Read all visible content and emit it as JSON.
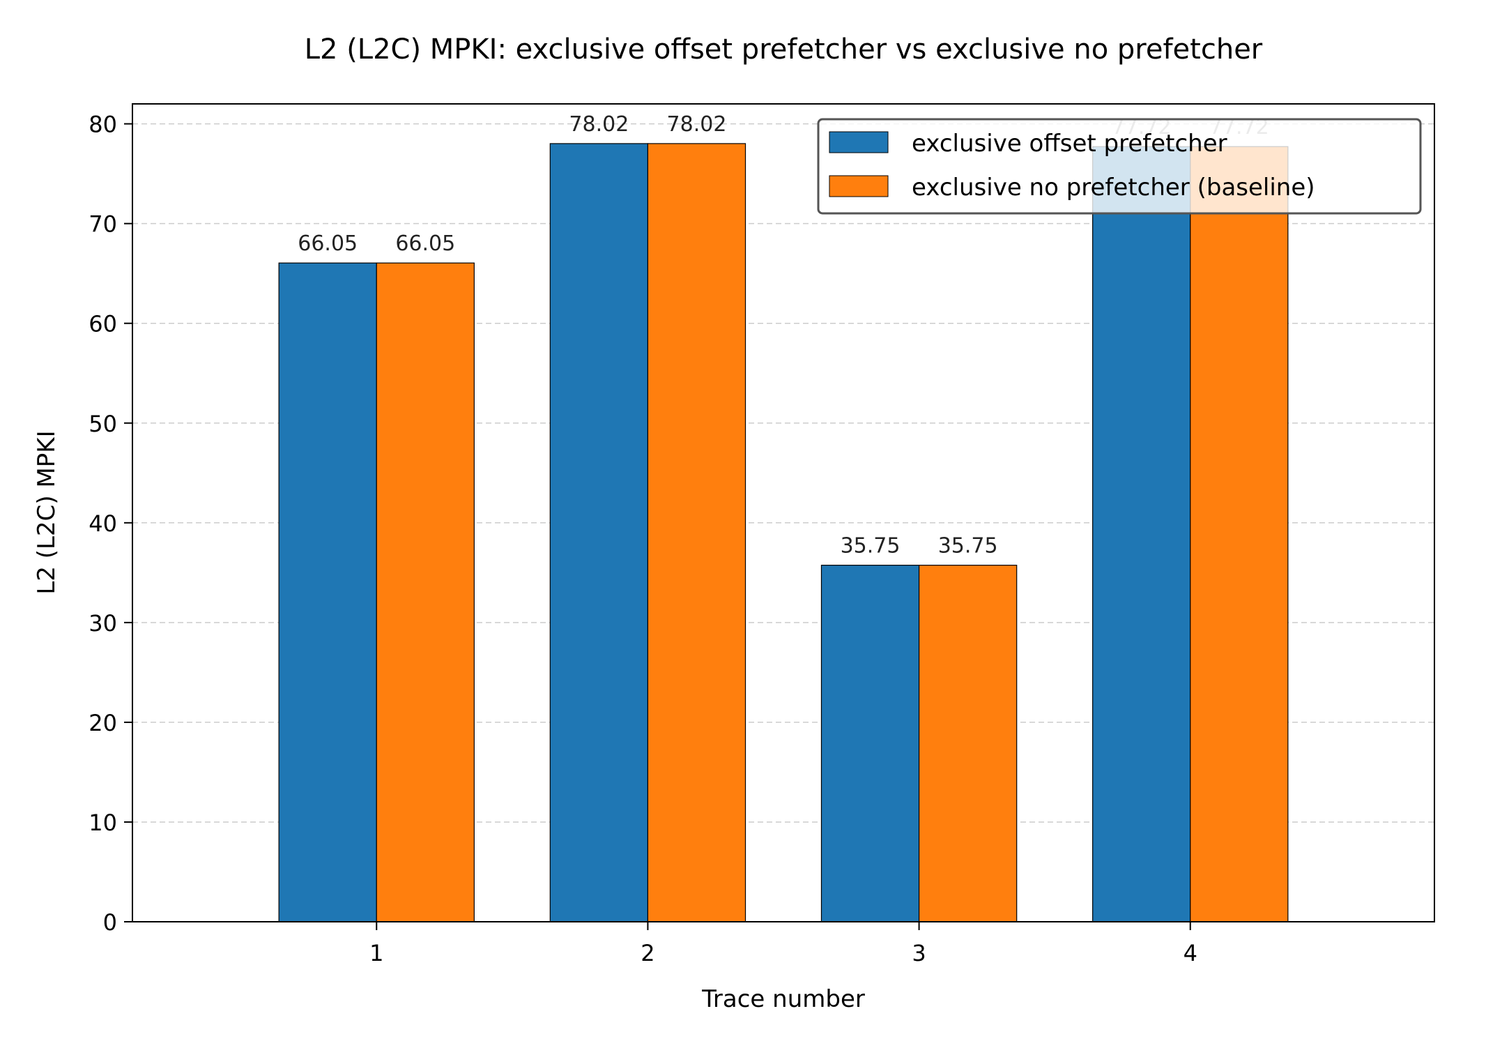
{
  "chart_data": {
    "type": "bar",
    "title": "L2 (L2C) MPKI: exclusive offset prefetcher vs exclusive no prefetcher",
    "xlabel": "Trace number",
    "ylabel": "L2 (L2C) MPKI",
    "categories": [
      "1",
      "2",
      "3",
      "4"
    ],
    "ylim": [
      0,
      82
    ],
    "yticks": [
      0,
      10,
      20,
      30,
      40,
      50,
      60,
      70,
      80
    ],
    "grid": "y-dashed",
    "legend_position": "top-right",
    "series": [
      {
        "name": "exclusive offset prefetcher",
        "color": "#1f77b4",
        "values": [
          66.05,
          78.02,
          35.75,
          77.72
        ],
        "labels": [
          "66.05",
          "78.02",
          "35.75",
          "77.72"
        ]
      },
      {
        "name": "exclusive no prefetcher (baseline)",
        "color": "#ff7f0e",
        "values": [
          66.05,
          78.02,
          35.75,
          77.72
        ],
        "labels": [
          "66.05",
          "78.02",
          "35.75",
          "77.72"
        ]
      }
    ]
  }
}
